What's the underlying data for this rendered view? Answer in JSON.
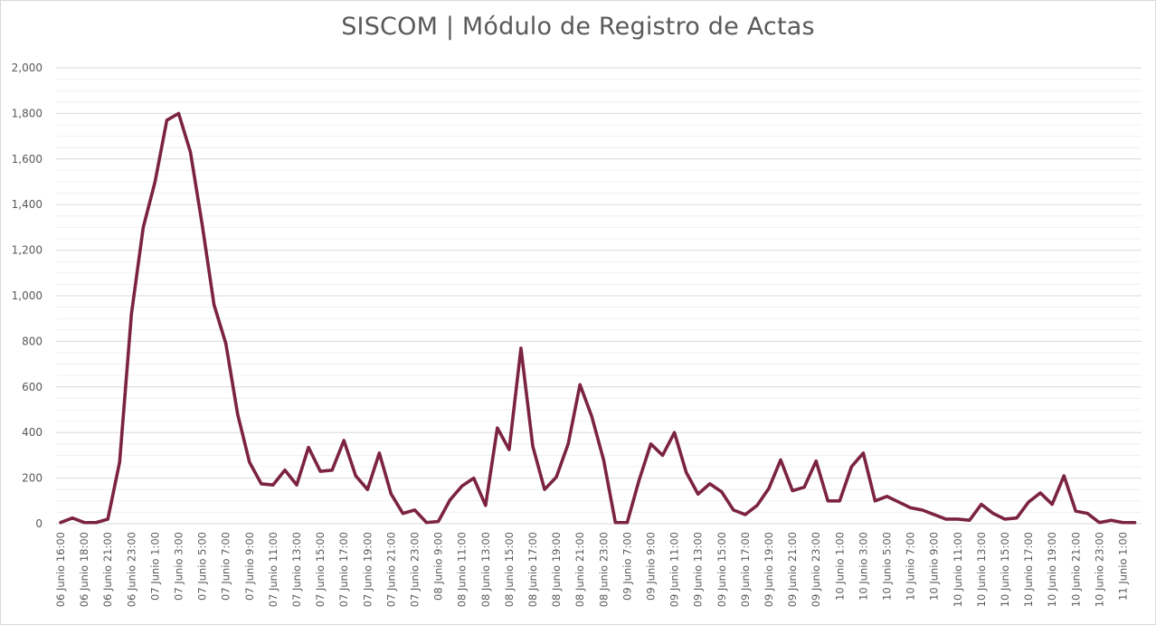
{
  "chart_data": {
    "type": "line",
    "title": "SISCOM | Módulo de Registro de Actas",
    "xlabel": "",
    "ylabel": "",
    "ylim": [
      0,
      2000
    ],
    "yticks": [
      0,
      200,
      400,
      600,
      800,
      1000,
      1200,
      1400,
      1600,
      1800,
      2000
    ],
    "ytick_labels": [
      "0",
      "200",
      "400",
      "600",
      "800",
      "1,000",
      "1,200",
      "1,400",
      "1,600",
      "1,800",
      "2,000"
    ],
    "grid": true,
    "legend": "none",
    "line_color": "#7B2341",
    "x_tick_labels": [
      "06 Junio 16:00",
      "06 Junio 18:00",
      "06 Junio 21:00",
      "06 Junio 23:00",
      "07 Junio 1:00",
      "07 Junio 3:00",
      "07 Junio 5:00",
      "07 Junio 7:00",
      "07 Junio 9:00",
      "07 Junio 11:00",
      "07 Junio 13:00",
      "07 Junio 15:00",
      "07 Junio 17:00",
      "07 Junio 19:00",
      "07 Junio 21:00",
      "07 Junio 23:00",
      "08 Junio 9:00",
      "08 Junio 11:00",
      "08 Junio 13:00",
      "08 Junio 15:00",
      "08 Junio 17:00",
      "08 Junio 19:00",
      "08 Junio 21:00",
      "08 Junio 23:00",
      "09 Junio 7:00",
      "09 Junio 9:00",
      "09 Junio 11:00",
      "09 Junio 13:00",
      "09 Junio 15:00",
      "09 Junio 17:00",
      "09 Junio 19:00",
      "09 Junio 21:00",
      "09 Junio 23:00",
      "10 Junio 1:00",
      "10 Junio 3:00",
      "10 Junio 5:00",
      "10 Junio 7:00",
      "10 Junio 9:00",
      "10 Junio 11:00",
      "10 Junio 13:00",
      "10 Junio 15:00",
      "10 Junio 17:00",
      "10 Junio 19:00",
      "10 Junio 21:00",
      "10 Junio 23:00",
      "11 Junio 1:00"
    ],
    "values": [
      5,
      25,
      5,
      5,
      20,
      270,
      920,
      1300,
      1500,
      1770,
      1800,
      1630,
      1310,
      960,
      790,
      480,
      270,
      175,
      170,
      235,
      170,
      335,
      230,
      235,
      365,
      210,
      150,
      310,
      130,
      45,
      60,
      5,
      10,
      105,
      165,
      200,
      80,
      420,
      325,
      770,
      340,
      150,
      205,
      350,
      610,
      470,
      280,
      5,
      5,
      190,
      350,
      300,
      400,
      225,
      130,
      175,
      140,
      60,
      40,
      80,
      155,
      280,
      145,
      160,
      275,
      100,
      100,
      250,
      310,
      100,
      120,
      95,
      70,
      60,
      40,
      20,
      20,
      15,
      85,
      45,
      20,
      25,
      95,
      135,
      85,
      210,
      55,
      45,
      5,
      15,
      5,
      5
    ]
  }
}
